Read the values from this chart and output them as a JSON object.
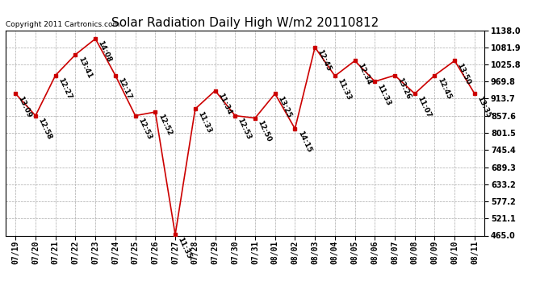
{
  "title": "Solar Radiation Daily High W/m2 20110812",
  "copyright": "Copyright 2011 Cartronics.com",
  "dates": [
    "07/19",
    "07/20",
    "07/21",
    "07/22",
    "07/23",
    "07/24",
    "07/25",
    "07/26",
    "07/27",
    "07/28",
    "07/29",
    "07/30",
    "07/31",
    "08/01",
    "08/02",
    "08/03",
    "08/04",
    "08/05",
    "08/06",
    "08/07",
    "08/08",
    "08/09",
    "08/10",
    "08/11"
  ],
  "values": [
    930,
    858,
    990,
    1058,
    1110,
    990,
    858,
    870,
    468,
    880,
    940,
    858,
    850,
    930,
    815,
    1082,
    988,
    1038,
    970,
    990,
    930,
    990,
    1038,
    930
  ],
  "labels": [
    "13:09",
    "12:58",
    "12:27",
    "13:41",
    "14:08",
    "12:17",
    "12:53",
    "12:52",
    "11:35",
    "11:33",
    "11:34",
    "12:53",
    "12:50",
    "13:25",
    "14:15",
    "12:45",
    "11:33",
    "12:34",
    "11:33",
    "13:26",
    "11:07",
    "12:45",
    "13:50",
    "13:35"
  ],
  "ymin": 465.0,
  "ymax": 1138.0,
  "yticks": [
    465.0,
    521.1,
    577.2,
    633.2,
    689.3,
    745.4,
    801.5,
    857.6,
    913.7,
    969.8,
    1025.8,
    1081.9,
    1138.0
  ],
  "line_color": "#cc0000",
  "marker_color": "#cc0000",
  "bg_color": "#ffffff",
  "grid_color": "#aaaaaa",
  "title_fontsize": 11,
  "label_fontsize": 6.5,
  "tick_fontsize": 7,
  "copyright_fontsize": 6.5
}
